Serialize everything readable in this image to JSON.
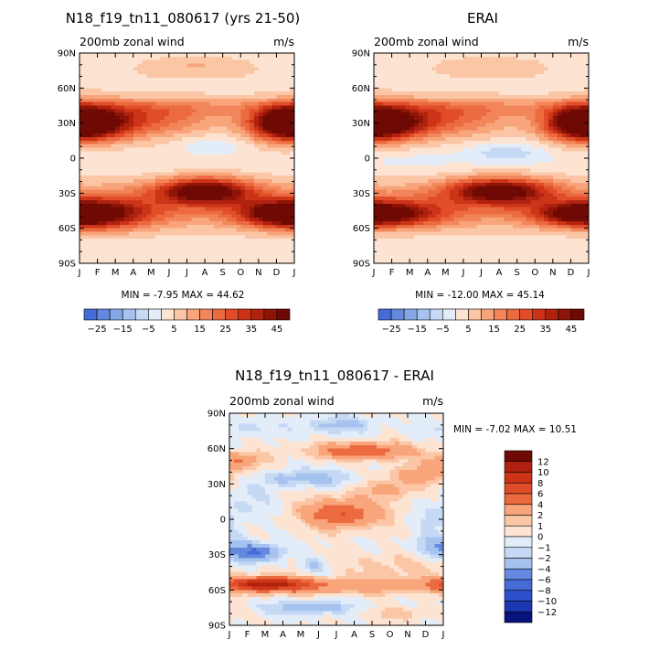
{
  "colors": {
    "positive": [
      "#fde4d2",
      "#fbc6a6",
      "#f8a57c",
      "#f28559",
      "#ec6a3f",
      "#e04d28",
      "#cc3418",
      "#b0220f",
      "#8e1407",
      "#6e0a03"
    ],
    "negative": [
      "#e3edfa",
      "#c6d9f4",
      "#a6c2ee",
      "#85a7e6",
      "#6489de",
      "#456bd6",
      "#2c4fcb",
      "#1b37b4",
      "#10239a",
      "#07127c"
    ],
    "neutral": "#ffffff",
    "axis": "#000000"
  },
  "chart_data": [
    {
      "type": "heatmap",
      "id": "model",
      "title": "N18_f19_tn11_080617 (yrs 21-50)",
      "left_label": "200mb zonal wind",
      "right_label": "m/s",
      "x_ticks": [
        "J",
        "F",
        "M",
        "A",
        "M",
        "J",
        "J",
        "A",
        "S",
        "O",
        "N",
        "D",
        "J"
      ],
      "y_ticks": [
        "90N",
        "60N",
        "30N",
        "0",
        "30S",
        "60S",
        "90S"
      ],
      "xlim": [
        0,
        12
      ],
      "ylim": [
        -90,
        90
      ],
      "min_text": "MIN =  -7.95 MAX =  44.62",
      "min": -7.95,
      "max": 44.62,
      "colorbar": {
        "orientation": "horizontal",
        "step": 5,
        "range": [
          -30,
          50
        ],
        "labels": [
          "-25",
          "-15",
          "-5",
          "5",
          "15",
          "25",
          "35",
          "45"
        ]
      },
      "features": [
        {
          "lat": 30,
          "lat_width": 14,
          "month": 0.5,
          "month_width": 2.6,
          "peak": 42,
          "wrap": true
        },
        {
          "lat": 30,
          "lat_width": 14,
          "month": 11.6,
          "month_width": 2.0,
          "peak": 40,
          "wrap": true
        },
        {
          "lat": 33,
          "lat_width": 15,
          "month": 4.5,
          "month_width": 3.6,
          "peak": 20,
          "wrap": true
        },
        {
          "lat": -28,
          "lat_width": 11,
          "month": 7.0,
          "month_width": 2.6,
          "peak": 44,
          "wrap": true
        },
        {
          "lat": -48,
          "lat_width": 13,
          "month": 1.0,
          "month_width": 3.0,
          "peak": 34,
          "wrap": true
        },
        {
          "lat": -48,
          "lat_width": 10,
          "month": 11.3,
          "month_width": 2.3,
          "peak": 30,
          "wrap": true
        },
        {
          "lat": -40,
          "lat_width": 22,
          "month": 6.0,
          "month_width": 20,
          "peak": 18,
          "wrap": true
        },
        {
          "lat": 10,
          "lat_width": 9,
          "month": 7.4,
          "month_width": 2.2,
          "peak": -8,
          "wrap": true
        },
        {
          "lat": 0,
          "lat_width": 12,
          "month": 2.0,
          "month_width": 3.0,
          "peak": -3,
          "wrap": true
        },
        {
          "lat": 80,
          "lat_width": 9,
          "month": 6.5,
          "month_width": 3.5,
          "peak": 9,
          "wrap": true
        },
        {
          "lat": 65,
          "lat_width": 14,
          "month": 0,
          "month_width": 20,
          "peak": 4,
          "wrap": true
        },
        {
          "lat": -85,
          "lat_width": 10,
          "month": 6.5,
          "month_width": 20,
          "peak": 4,
          "wrap": true
        },
        {
          "lat": 8,
          "lat_width": 12,
          "month": 6,
          "month_width": 20,
          "peak": 4,
          "wrap": true
        },
        {
          "lat": 44,
          "lat_width": 8,
          "month": 6,
          "month_width": 20,
          "peak": 10,
          "wrap": true
        }
      ]
    },
    {
      "type": "heatmap",
      "id": "erai",
      "title": "ERAI",
      "left_label": "200mb zonal wind",
      "right_label": "m/s",
      "x_ticks": [
        "J",
        "F",
        "M",
        "A",
        "M",
        "J",
        "J",
        "A",
        "S",
        "O",
        "N",
        "D",
        "J"
      ],
      "y_ticks": [
        "90N",
        "60N",
        "30N",
        "0",
        "30S",
        "60S",
        "90S"
      ],
      "xlim": [
        0,
        12
      ],
      "ylim": [
        -90,
        90
      ],
      "min_text": "MIN = -12.00 MAX =  45.14",
      "min": -12.0,
      "max": 45.14,
      "colorbar": {
        "orientation": "horizontal",
        "step": 5,
        "range": [
          -30,
          50
        ],
        "labels": [
          "-25",
          "-15",
          "-5",
          "5",
          "15",
          "25",
          "35",
          "45"
        ]
      },
      "features": [
        {
          "lat": 30,
          "lat_width": 14,
          "month": 0.5,
          "month_width": 2.6,
          "peak": 42,
          "wrap": true
        },
        {
          "lat": 30,
          "lat_width": 14,
          "month": 11.6,
          "month_width": 2.0,
          "peak": 38,
          "wrap": true
        },
        {
          "lat": 33,
          "lat_width": 15,
          "month": 4.5,
          "month_width": 3.6,
          "peak": 20,
          "wrap": true
        },
        {
          "lat": -28,
          "lat_width": 11,
          "month": 7.0,
          "month_width": 2.8,
          "peak": 42,
          "wrap": true
        },
        {
          "lat": -48,
          "lat_width": 11,
          "month": 1.0,
          "month_width": 3.0,
          "peak": 30,
          "wrap": true
        },
        {
          "lat": -48,
          "lat_width": 10,
          "month": 11.3,
          "month_width": 2.3,
          "peak": 26,
          "wrap": true
        },
        {
          "lat": -40,
          "lat_width": 22,
          "month": 6.0,
          "month_width": 20,
          "peak": 18,
          "wrap": true
        },
        {
          "lat": 5,
          "lat_width": 9,
          "month": 7.4,
          "month_width": 2.5,
          "peak": -12,
          "wrap": true
        },
        {
          "lat": 0,
          "lat_width": 12,
          "month": 2.0,
          "month_width": 3.0,
          "peak": -4,
          "wrap": true
        },
        {
          "lat": 80,
          "lat_width": 9,
          "month": 6.5,
          "month_width": 3.5,
          "peak": 8,
          "wrap": true
        },
        {
          "lat": 65,
          "lat_width": 14,
          "month": 0,
          "month_width": 20,
          "peak": 4,
          "wrap": true
        },
        {
          "lat": -85,
          "lat_width": 10,
          "month": 6.5,
          "month_width": 20,
          "peak": 4,
          "wrap": true
        },
        {
          "lat": 8,
          "lat_width": 12,
          "month": 6,
          "month_width": 20,
          "peak": 4,
          "wrap": true
        },
        {
          "lat": 44,
          "lat_width": 8,
          "month": 6,
          "month_width": 20,
          "peak": 10,
          "wrap": true
        }
      ]
    },
    {
      "type": "heatmap",
      "id": "difference",
      "title": "N18_f19_tn11_080617 - ERAI",
      "left_label": "200mb zonal wind",
      "right_label": "m/s",
      "x_ticks": [
        "J",
        "F",
        "M",
        "A",
        "M",
        "J",
        "J",
        "A",
        "S",
        "O",
        "N",
        "D",
        "J"
      ],
      "y_ticks": [
        "90N",
        "60N",
        "30N",
        "0",
        "30S",
        "60S",
        "90S"
      ],
      "xlim": [
        0,
        12
      ],
      "ylim": [
        -90,
        90
      ],
      "min_text": "MIN =  -7.02 MAX =  10.51",
      "min": -7.02,
      "max": 10.51,
      "colorbar": {
        "orientation": "vertical",
        "levels": [
          -12,
          -10,
          -8,
          -6,
          -4,
          -2,
          -1,
          0,
          1,
          2,
          4,
          6,
          8,
          10,
          12
        ],
        "labels": [
          "12",
          "10",
          "8",
          "6",
          "4",
          "2",
          "1",
          "0",
          "-1",
          "-2",
          "-4",
          "-6",
          "-8",
          "-10",
          "-12"
        ]
      },
      "features": [
        {
          "lat": -55,
          "lat_width": 6,
          "month": 2.0,
          "month_width": 2.4,
          "peak": 9.5,
          "wrap": true
        },
        {
          "lat": -57,
          "lat_width": 7,
          "month": 6.5,
          "month_width": 7.0,
          "peak": 3,
          "wrap": true
        },
        {
          "lat": -28,
          "lat_width": 7,
          "month": 1.4,
          "month_width": 1.4,
          "peak": -6.5,
          "wrap": true
        },
        {
          "lat": -22,
          "lat_width": 9,
          "month": 11.5,
          "month_width": 1.2,
          "peak": -3,
          "wrap": true
        },
        {
          "lat": -75,
          "lat_width": 6,
          "month": 4.5,
          "month_width": 2.6,
          "peak": -3,
          "wrap": true
        },
        {
          "lat": -80,
          "lat_width": 6,
          "month": 9.5,
          "month_width": 2.5,
          "peak": 1.5,
          "wrap": true
        },
        {
          "lat": 5,
          "lat_width": 12,
          "month": 6.3,
          "month_width": 2.2,
          "peak": 6,
          "wrap": true
        },
        {
          "lat": 25,
          "lat_width": 8,
          "month": 9.0,
          "month_width": 1.6,
          "peak": 2.5,
          "wrap": true
        },
        {
          "lat": 58,
          "lat_width": 7,
          "month": 7.5,
          "month_width": 2.6,
          "peak": 6,
          "wrap": true
        },
        {
          "lat": 50,
          "lat_width": 7,
          "month": 0.5,
          "month_width": 1.4,
          "peak": 4,
          "wrap": true
        },
        {
          "lat": 38,
          "lat_width": 8,
          "month": 10.7,
          "month_width": 1.8,
          "peak": 3,
          "wrap": true
        },
        {
          "lat": 35,
          "lat_width": 7,
          "month": 5.2,
          "month_width": 1.8,
          "peak": -2.5,
          "wrap": true
        },
        {
          "lat": 35,
          "lat_width": 7,
          "month": 3.0,
          "month_width": 1.2,
          "peak": -2,
          "wrap": true
        },
        {
          "lat": 80,
          "lat_width": 7,
          "month": 6.0,
          "month_width": 2.0,
          "peak": -2.5,
          "wrap": true
        },
        {
          "lat": 78,
          "lat_width": 7,
          "month": 1.0,
          "month_width": 1.5,
          "peak": -1.5,
          "wrap": true
        },
        {
          "lat": 15,
          "lat_width": 18,
          "month": 1.0,
          "month_width": 1.5,
          "peak": -1.2,
          "wrap": true
        },
        {
          "lat": -40,
          "lat_width": 6,
          "month": 4.7,
          "month_width": 0.6,
          "peak": -2.5,
          "wrap": true
        },
        {
          "lat": -40,
          "lat_width": 12,
          "month": 9.0,
          "month_width": 2.5,
          "peak": 1.5,
          "wrap": true
        },
        {
          "lat": 0,
          "lat_width": 9,
          "month": 11.5,
          "month_width": 1.0,
          "peak": -1.5,
          "wrap": true
        }
      ]
    }
  ]
}
